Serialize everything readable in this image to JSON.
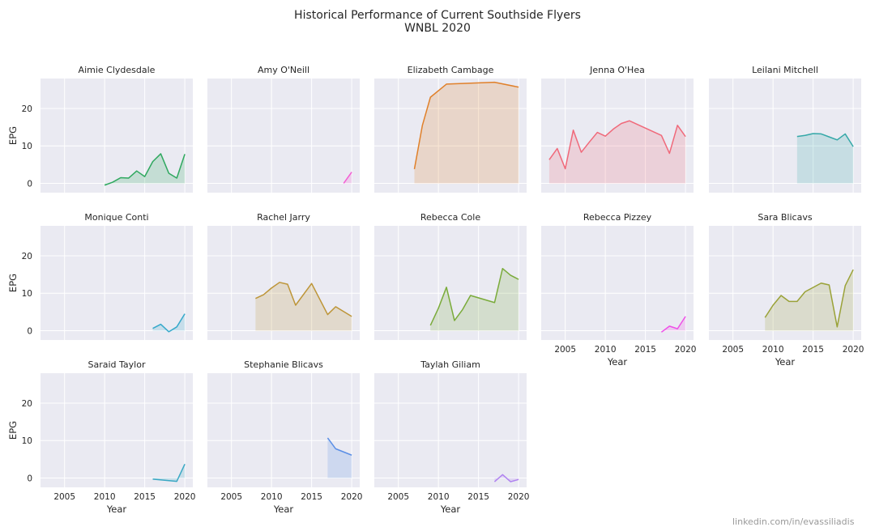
{
  "title": "Historical Performance of Current Southside Flyers",
  "subtitle": "WNBL 2020",
  "credit": "linkedin.com/in/evassiliadis",
  "chart_data": {
    "type": "area",
    "facet": "small-multiples",
    "xlabel": "Year",
    "ylabel": "EPG",
    "xlim": [
      2002,
      2021
    ],
    "ylim": [
      -2.5,
      28
    ],
    "xticks": [
      2005,
      2010,
      2015,
      2020
    ],
    "yticks": [
      0,
      10,
      20
    ],
    "grid": true,
    "series": [
      {
        "name": "Aimie Clydesdale",
        "color": "#2fa85f",
        "x": [
          2010,
          2011,
          2012,
          2013,
          2014,
          2015,
          2016,
          2017,
          2018,
          2019,
          2020
        ],
        "y": [
          -0.5,
          0.3,
          1.5,
          1.4,
          3.3,
          1.8,
          5.8,
          7.9,
          2.7,
          1.4,
          7.8
        ]
      },
      {
        "name": "Amy O'Neill",
        "color": "#f35ed4",
        "x": [
          2019,
          2020
        ],
        "y": [
          0,
          3
        ]
      },
      {
        "name": "Elizabeth Cambage",
        "color": "#e0802a",
        "x": [
          2007,
          2008,
          2009,
          2011,
          2017,
          2020
        ],
        "y": [
          3.8,
          15.5,
          23,
          26.5,
          27,
          25.7
        ]
      },
      {
        "name": "Jenna O'Hea",
        "color": "#f0697a",
        "x": [
          2003,
          2004,
          2005,
          2006,
          2007,
          2008,
          2009,
          2010,
          2011,
          2012,
          2013,
          2017,
          2018,
          2019,
          2020
        ],
        "y": [
          6.3,
          9.3,
          3.9,
          14.2,
          8.3,
          11,
          13.6,
          12.6,
          14.5,
          16,
          16.7,
          12.8,
          8,
          15.5,
          12.5
        ]
      },
      {
        "name": "Leilani Mitchell",
        "color": "#35a8a8",
        "x": [
          2013,
          2014,
          2015,
          2016,
          2017,
          2018,
          2019,
          2020
        ],
        "y": [
          12.5,
          12.8,
          13.3,
          13.2,
          12.4,
          11.6,
          13.2,
          9.8
        ]
      },
      {
        "name": "Monique Conti",
        "color": "#36a9cb",
        "x": [
          2016,
          2017,
          2018,
          2019,
          2020
        ],
        "y": [
          0.6,
          1.7,
          -0.3,
          1,
          4.5
        ]
      },
      {
        "name": "Rachel Jarry",
        "color": "#bd9538",
        "x": [
          2008,
          2009,
          2010,
          2011,
          2012,
          2013,
          2015,
          2017,
          2018,
          2020
        ],
        "y": [
          8.6,
          9.6,
          11.4,
          12.9,
          12.4,
          6.8,
          12.6,
          4.3,
          6.4,
          3.8
        ]
      },
      {
        "name": "Rebecca Cole",
        "color": "#7aab3a",
        "x": [
          2009,
          2010,
          2011,
          2012,
          2013,
          2014,
          2017,
          2018,
          2019,
          2020
        ],
        "y": [
          1.4,
          6,
          11.6,
          2.7,
          5.6,
          9.4,
          7.5,
          16.6,
          14.8,
          13.7
        ]
      },
      {
        "name": "Rebecca Pizzey",
        "color": "#ef50e8",
        "x": [
          2017,
          2018,
          2019,
          2020
        ],
        "y": [
          -0.4,
          1.2,
          0.5,
          3.8
        ]
      },
      {
        "name": "Sara Blicavs",
        "color": "#9aa238",
        "x": [
          2009,
          2010,
          2011,
          2012,
          2013,
          2014,
          2016,
          2017,
          2018,
          2019,
          2020
        ],
        "y": [
          3.5,
          6.8,
          9.4,
          7.8,
          7.8,
          10.4,
          12.7,
          12.2,
          1,
          12,
          16.3
        ]
      },
      {
        "name": "Saraid Taylor",
        "color": "#3aa8c4",
        "x": [
          2016,
          2019,
          2020
        ],
        "y": [
          -0.3,
          -0.9,
          3.7
        ]
      },
      {
        "name": "Stephanie Blicavs",
        "color": "#5b8fe6",
        "x": [
          2017,
          2018,
          2020
        ],
        "y": [
          10.7,
          7.8,
          6.1
        ]
      },
      {
        "name": "Taylah Giliam",
        "color": "#b082f0",
        "x": [
          2017,
          2018,
          2019,
          2020
        ],
        "y": [
          -1,
          0.9,
          -1,
          -0.4
        ]
      }
    ]
  }
}
